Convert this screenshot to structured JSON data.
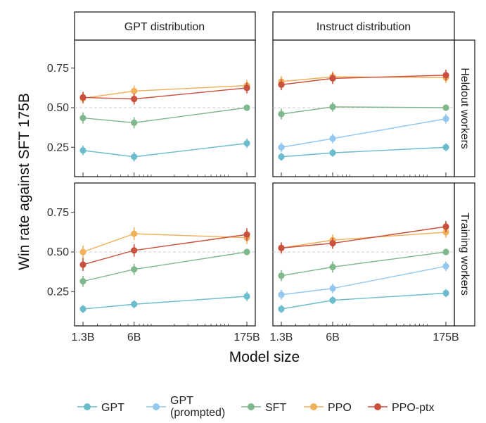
{
  "chart_data": {
    "type": "line",
    "xlabel": "Model size",
    "ylabel": "Win rate against SFT 175B",
    "x_scale": "log",
    "x_ticks": [
      {
        "value": 1.3,
        "label": "1.3B"
      },
      {
        "value": 6,
        "label": "6B"
      },
      {
        "value": 175,
        "label": "175B"
      }
    ],
    "y_ticks": [
      {
        "value": 0.25,
        "label": "0.25"
      },
      {
        "value": 0.5,
        "label": "0.50"
      },
      {
        "value": 0.75,
        "label": "0.75"
      }
    ],
    "ylim": [
      0.05,
      0.95
    ],
    "reference_line": 0.5,
    "column_facets": [
      "GPT distribution",
      "Instruct distribution"
    ],
    "row_facets": [
      "Heldout workers",
      "Training workers"
    ],
    "legend": {
      "placement": "bottom",
      "entries": [
        {
          "label": "GPT",
          "color": "#6bbccd"
        },
        {
          "label_lines": [
            "GPT",
            "(prompted)"
          ],
          "color": "#92c8f0"
        },
        {
          "label": "SFT",
          "color": "#7fb88c"
        },
        {
          "label": "PPO",
          "color": "#f1b05b"
        },
        {
          "label": "PPO-ptx",
          "color": "#c9503c"
        }
      ]
    },
    "panels": [
      {
        "column": "GPT distribution",
        "row": "Heldout workers",
        "series": [
          {
            "name": "GPT",
            "color": "#6bbccd",
            "x": [
              1.3,
              6,
              175
            ],
            "y": [
              0.23,
              0.19,
              0.275
            ],
            "err": [
              0.03,
              0.03,
              0.03
            ]
          },
          {
            "name": "SFT",
            "color": "#7fb88c",
            "x": [
              1.3,
              6,
              175
            ],
            "y": [
              0.435,
              0.405,
              0.5
            ],
            "err": [
              0.035,
              0.035,
              0.015
            ]
          },
          {
            "name": "PPO",
            "color": "#f1b05b",
            "x": [
              1.3,
              6,
              175
            ],
            "y": [
              0.56,
              0.605,
              0.64
            ],
            "err": [
              0.035,
              0.035,
              0.035
            ]
          },
          {
            "name": "PPO-ptx",
            "color": "#c9503c",
            "x": [
              1.3,
              6,
              175
            ],
            "y": [
              0.565,
              0.555,
              0.625
            ],
            "err": [
              0.035,
              0.035,
              0.035
            ]
          }
        ]
      },
      {
        "column": "Instruct distribution",
        "row": "Heldout workers",
        "series": [
          {
            "name": "GPT",
            "color": "#6bbccd",
            "x": [
              1.3,
              6,
              175
            ],
            "y": [
              0.19,
              0.215,
              0.25
            ],
            "err": [
              0.025,
              0.025,
              0.025
            ]
          },
          {
            "name": "GPT (prompted)",
            "color": "#92c8f0",
            "x": [
              1.3,
              6,
              175
            ],
            "y": [
              0.25,
              0.305,
              0.43
            ],
            "err": [
              0.03,
              0.03,
              0.03
            ]
          },
          {
            "name": "SFT",
            "color": "#7fb88c",
            "x": [
              1.3,
              6,
              175
            ],
            "y": [
              0.46,
              0.505,
              0.5
            ],
            "err": [
              0.035,
              0.03,
              0.01
            ]
          },
          {
            "name": "PPO",
            "color": "#f1b05b",
            "x": [
              1.3,
              6,
              175
            ],
            "y": [
              0.665,
              0.695,
              0.69
            ],
            "err": [
              0.035,
              0.035,
              0.035
            ]
          },
          {
            "name": "PPO-ptx",
            "color": "#c9503c",
            "x": [
              1.3,
              6,
              175
            ],
            "y": [
              0.645,
              0.685,
              0.705
            ],
            "err": [
              0.035,
              0.035,
              0.035
            ]
          }
        ]
      },
      {
        "column": "GPT distribution",
        "row": "Training workers",
        "series": [
          {
            "name": "GPT",
            "color": "#6bbccd",
            "x": [
              1.3,
              6,
              175
            ],
            "y": [
              0.14,
              0.17,
              0.22
            ],
            "err": [
              0.025,
              0.025,
              0.03
            ]
          },
          {
            "name": "SFT",
            "color": "#7fb88c",
            "x": [
              1.3,
              6,
              175
            ],
            "y": [
              0.315,
              0.39,
              0.5
            ],
            "err": [
              0.035,
              0.035,
              0.01
            ]
          },
          {
            "name": "PPO",
            "color": "#f1b05b",
            "x": [
              1.3,
              6,
              175
            ],
            "y": [
              0.5,
              0.615,
              0.59
            ],
            "err": [
              0.04,
              0.04,
              0.04
            ]
          },
          {
            "name": "PPO-ptx",
            "color": "#c9503c",
            "x": [
              1.3,
              6,
              175
            ],
            "y": [
              0.42,
              0.51,
              0.61
            ],
            "err": [
              0.04,
              0.04,
              0.04
            ]
          }
        ]
      },
      {
        "column": "Instruct distribution",
        "row": "Training workers",
        "series": [
          {
            "name": "GPT",
            "color": "#6bbccd",
            "x": [
              1.3,
              6,
              175
            ],
            "y": [
              0.14,
              0.195,
              0.24
            ],
            "err": [
              0.025,
              0.025,
              0.025
            ]
          },
          {
            "name": "GPT (prompted)",
            "color": "#92c8f0",
            "x": [
              1.3,
              6,
              175
            ],
            "y": [
              0.23,
              0.27,
              0.41
            ],
            "err": [
              0.03,
              0.03,
              0.03
            ]
          },
          {
            "name": "SFT",
            "color": "#7fb88c",
            "x": [
              1.3,
              6,
              175
            ],
            "y": [
              0.35,
              0.405,
              0.5
            ],
            "err": [
              0.035,
              0.035,
              0.01
            ]
          },
          {
            "name": "PPO",
            "color": "#f1b05b",
            "x": [
              1.3,
              6,
              175
            ],
            "y": [
              0.525,
              0.575,
              0.625
            ],
            "err": [
              0.035,
              0.035,
              0.035
            ]
          },
          {
            "name": "PPO-ptx",
            "color": "#c9503c",
            "x": [
              1.3,
              6,
              175
            ],
            "y": [
              0.525,
              0.555,
              0.66
            ],
            "err": [
              0.035,
              0.035,
              0.035
            ]
          }
        ]
      }
    ]
  }
}
